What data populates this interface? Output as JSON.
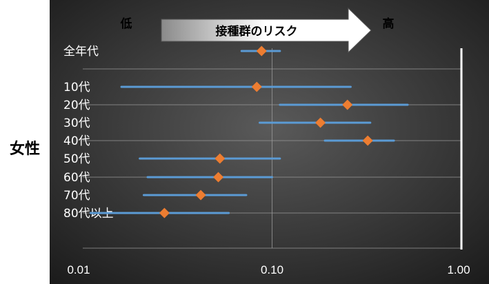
{
  "panel_label": "女性",
  "header": {
    "low": "低",
    "high": "高",
    "arrow_label": "接種群のリスク"
  },
  "colors": {
    "background_center": "#5a5a5a",
    "background_edge": "#1a1a1a",
    "ci_line": "#5b9bd5",
    "point": "#ed7d31",
    "gridline": "#9a9a9a",
    "reference_line": "#ffffff"
  },
  "chart_data": {
    "type": "forest",
    "x_scale": "log",
    "xlim": [
      0.01,
      1.0
    ],
    "x_ticks": [
      0.01,
      0.1,
      1.0
    ],
    "x_tick_labels": [
      "0.01",
      "0.10",
      "1.00"
    ],
    "reference_value": 1.0,
    "grid": "horizontal",
    "rows": [
      {
        "label": "全年代",
        "estimate": 0.088,
        "lower": 0.069,
        "upper": 0.11
      },
      {
        "label": "10代",
        "estimate": 0.083,
        "lower": 0.016,
        "upper": 0.26
      },
      {
        "label": "20代",
        "estimate": 0.25,
        "lower": 0.11,
        "upper": 0.52
      },
      {
        "label": "30代",
        "estimate": 0.18,
        "lower": 0.086,
        "upper": 0.33
      },
      {
        "label": "40代",
        "estimate": 0.32,
        "lower": 0.19,
        "upper": 0.44
      },
      {
        "label": "50代",
        "estimate": 0.053,
        "lower": 0.02,
        "upper": 0.11
      },
      {
        "label": "60代",
        "estimate": 0.052,
        "lower": 0.022,
        "upper": 0.1
      },
      {
        "label": "70代",
        "estimate": 0.042,
        "lower": 0.021,
        "upper": 0.073
      },
      {
        "label": "80代以上",
        "estimate": 0.027,
        "lower": 0.011,
        "upper": 0.059
      }
    ]
  }
}
